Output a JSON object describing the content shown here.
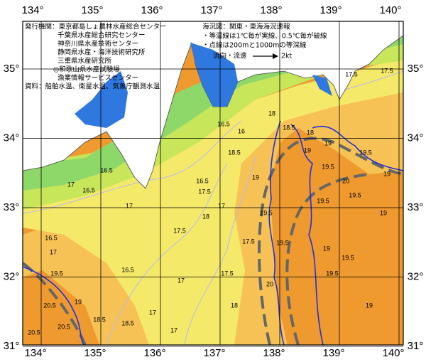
{
  "issuers": [
    "発行機関：東京都島しょ農林水産総合センター",
    "千葉県水産総合研究センター",
    "神奈川県水産技術センター",
    "静岡県水産・海洋技術研究所",
    "三重県水産研究所",
    "◎和歌山県水産試験場",
    "漁業情報サービスセンター"
  ],
  "source": "資料：船舶水温、衛星水温、気象庁観測水温",
  "notes": [
    "海況図：関東・東海海況速報",
    "・等温線は1℃毎が実線、0.5℃毎が破線",
    "・点線は200mと1000mの等深線"
  ],
  "current_legend": {
    "label": "流向・流速",
    "speed": "2kt"
  },
  "longitudes": [
    "134°",
    "135°",
    "136°",
    "137°",
    "138°",
    "139°",
    "140°"
  ],
  "latitudes": [
    "35°",
    "34°",
    "33°",
    "32°",
    "31°"
  ],
  "contour_labels": [
    17.5,
    17.5,
    18,
    18.5,
    18,
    19,
    19.5,
    19,
    19.5,
    19,
    20,
    19,
    19.5,
    19.5,
    19,
    19.5,
    19.5,
    19,
    20,
    19.5,
    19.5,
    19,
    18.5,
    17.5,
    17.5,
    18,
    17,
    16.5,
    17.5,
    18,
    17.5,
    17,
    17,
    17,
    16.5,
    17,
    16.5,
    16.5,
    17,
    16.5,
    17,
    19.5,
    20.5,
    20.5,
    20.5,
    18.5,
    18.5,
    19,
    16,
    16.5
  ]
}
